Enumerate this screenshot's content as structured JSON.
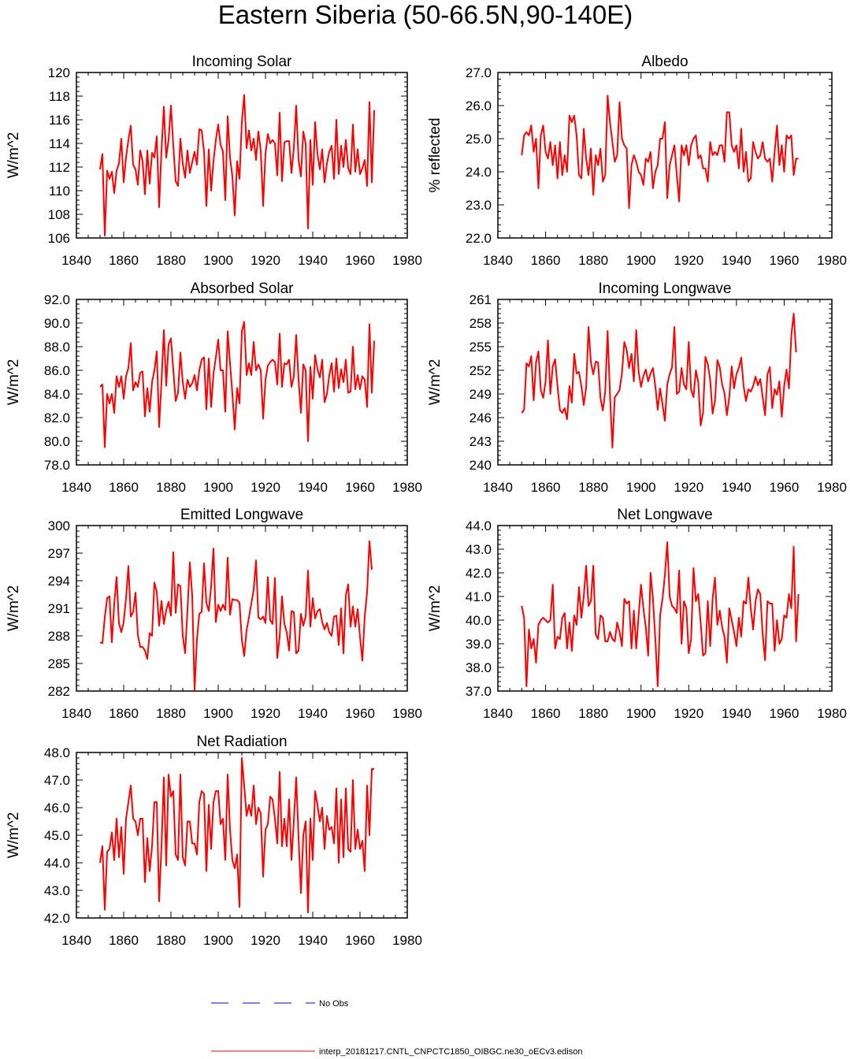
{
  "title": "Eastern Siberia (50-66.5N,90-140E)",
  "colors": {
    "series": "#ff0000",
    "obs": "#0000cc",
    "axes": "#000000"
  },
  "legend": {
    "obs_label": "No Obs",
    "model_label": "interp_20181217.CNTL_CNPCTC1850_OIBGC.ne30_oECv3.edison"
  },
  "chart_data": [
    {
      "type": "line",
      "title": "Incoming Solar",
      "ylabel": "W/m^2",
      "xlim": [
        1840,
        1980
      ],
      "ylim": [
        106,
        120
      ],
      "xticks": [
        "1840",
        "1860",
        "1880",
        "1900",
        "1920",
        "1940",
        "1960",
        "1980"
      ],
      "yticks": [
        "106",
        "108",
        "110",
        "112",
        "114",
        "116",
        "118",
        "120"
      ],
      "x_start": 1850,
      "values": [
        111.8,
        113.1,
        106.2,
        111.7,
        111.0,
        111.6,
        109.8,
        111.7,
        112.3,
        114.4,
        110.7,
        112.8,
        114.3,
        115.5,
        112.2,
        111.8,
        110.5,
        113.4,
        112.5,
        109.7,
        113.4,
        110.6,
        113.2,
        112.8,
        114.6,
        108.6,
        113.4,
        117.1,
        112.8,
        114.3,
        117.2,
        113.8,
        110.8,
        110.4,
        114.4,
        112.3,
        111.1,
        113.4,
        111.5,
        112.4,
        113.3,
        112.2,
        115.2,
        115.1,
        113.3,
        108.7,
        113.5,
        110.0,
        112.5,
        114.3,
        115.6,
        113.9,
        113.3,
        109.2,
        116.3,
        112.8,
        111.2,
        107.9,
        112.5,
        111.0,
        115.8,
        118.1,
        113.6,
        115.1,
        113.4,
        114.4,
        112.6,
        115.0,
        113.4,
        108.7,
        113.1,
        114.8,
        114.0,
        114.3,
        114.0,
        111.3,
        116.6,
        110.8,
        114.1,
        114.2,
        114.2,
        111.5,
        113.6,
        117.2,
        112.6,
        111.2,
        115.0,
        114.0,
        106.8,
        114.3,
        110.5,
        115.8,
        113.1,
        111.8,
        113.5,
        110.7,
        112.3,
        113.3,
        113.8,
        111.0,
        116.0,
        111.4,
        113.8,
        112.0,
        114.3,
        111.9,
        111.4,
        115.6,
        111.6,
        113.5,
        111.4,
        111.9,
        112.6,
        110.4,
        117.5,
        110.7,
        116.8
      ]
    },
    {
      "type": "line",
      "title": "Albedo",
      "ylabel": "% reflected",
      "xlim": [
        1840,
        1980
      ],
      "ylim": [
        22,
        27
      ],
      "xticks": [
        "1840",
        "1860",
        "1880",
        "1900",
        "1920",
        "1940",
        "1960",
        "1980"
      ],
      "yticks": [
        "22.0",
        "23.0",
        "24.0",
        "25.0",
        "26.0",
        "27.0"
      ],
      "x_start": 1850,
      "values": [
        24.5,
        25.1,
        25.2,
        25.1,
        25.4,
        24.6,
        25.0,
        23.5,
        25.1,
        25.4,
        24.6,
        24.4,
        24.9,
        24.2,
        24.8,
        23.8,
        24.9,
        23.9,
        24.5,
        24.0,
        25.7,
        25.5,
        25.7,
        25.1,
        23.9,
        23.8,
        25.3,
        24.4,
        23.9,
        24.7,
        23.3,
        24.5,
        24.2,
        24.7,
        23.7,
        23.9,
        26.3,
        25.5,
        24.9,
        24.3,
        24.5,
        26.1,
        25.0,
        24.8,
        24.7,
        22.9,
        24.2,
        24.5,
        24.3,
        24.0,
        23.9,
        23.6,
        24.4,
        24.3,
        24.6,
        23.5,
        24.0,
        24.2,
        25.0,
        25.0,
        25.5,
        23.2,
        24.2,
        24.5,
        24.8,
        23.9,
        23.1,
        24.8,
        24.5,
        24.8,
        24.2,
        24.8,
        25.0,
        25.1,
        24.4,
        24.5,
        24.1,
        24.1,
        23.7,
        24.9,
        24.5,
        24.6,
        24.5,
        24.8,
        24.8,
        24.3,
        25.8,
        25.8,
        24.8,
        24.6,
        24.8,
        24.1,
        25.3,
        24.0,
        24.6,
        23.7,
        23.8,
        24.9,
        24.6,
        24.4,
        24.5,
        24.9,
        24.4,
        24.3,
        24.4,
        23.7,
        24.6,
        25.4,
        24.2,
        24.8,
        24.0,
        25.1,
        25.0,
        25.1,
        23.9,
        24.4,
        24.4
      ]
    },
    {
      "type": "line",
      "title": "Absorbed Solar",
      "ylabel": "W/m^2",
      "xlim": [
        1840,
        1980
      ],
      "ylim": [
        78,
        92
      ],
      "xticks": [
        "1840",
        "1860",
        "1880",
        "1900",
        "1920",
        "1940",
        "1960",
        "1980"
      ],
      "yticks": [
        "78.0",
        "80.0",
        "82.0",
        "84.0",
        "86.0",
        "88.0",
        "90.0",
        "92.0"
      ],
      "x_start": 1850,
      "values": [
        84.6,
        84.8,
        79.5,
        84.0,
        83.2,
        84.0,
        82.4,
        85.5,
        84.6,
        85.5,
        83.6,
        85.5,
        86.2,
        88.3,
        84.3,
        85.0,
        84.6,
        85.8,
        85.9,
        82.1,
        84.5,
        82.5,
        85.0,
        86.0,
        87.6,
        81.2,
        85.0,
        89.4,
        84.7,
        88.2,
        88.7,
        86.0,
        83.4,
        84.1,
        87.5,
        85.0,
        83.6,
        85.2,
        84.6,
        84.9,
        85.6,
        84.3,
        86.0,
        86.9,
        87.1,
        82.7,
        87.0,
        82.9,
        85.7,
        87.1,
        88.6,
        86.0,
        86.0,
        82.5,
        89.3,
        86.6,
        84.0,
        81.0,
        84.5,
        83.2,
        89.3,
        90.1,
        85.6,
        86.6,
        85.6,
        88.4,
        86.0,
        86.5,
        86.0,
        81.9,
        85.2,
        86.4,
        86.7,
        86.9,
        86.7,
        84.8,
        89.1,
        84.6,
        86.6,
        86.5,
        86.9,
        84.6,
        85.5,
        89.0,
        85.2,
        82.4,
        86.5,
        86.0,
        80.0,
        86.3,
        83.6,
        87.3,
        86.1,
        85.4,
        86.9,
        83.3,
        84.0,
        85.6,
        86.6,
        84.2,
        87.0,
        84.5,
        86.1,
        85.0,
        86.9,
        84.1,
        84.2,
        88.0,
        84.4,
        85.6,
        84.4,
        85.5,
        85.2,
        82.9,
        89.9,
        84.1,
        88.5
      ]
    },
    {
      "type": "line",
      "title": "Incoming Longwave",
      "ylabel": "W/m^2",
      "xlim": [
        1840,
        1980
      ],
      "ylim": [
        240,
        261
      ],
      "xticks": [
        "1840",
        "1860",
        "1880",
        "1900",
        "1920",
        "1940",
        "1960",
        "1980"
      ],
      "yticks": [
        "240",
        "243",
        "246",
        "249",
        "252",
        "255",
        "258",
        "261"
      ],
      "x_start": 1850,
      "values": [
        246.6,
        247.0,
        252.9,
        252.5,
        253.8,
        248.2,
        253.0,
        254.4,
        249.5,
        248.5,
        250.6,
        255.8,
        249.0,
        252.5,
        253.4,
        250.0,
        247.0,
        246.6,
        247.2,
        245.8,
        250.0,
        247.9,
        254.1,
        251.6,
        251.8,
        250.0,
        247.6,
        249.8,
        257.5,
        253.0,
        251.5,
        253.1,
        253.0,
        248.5,
        246.9,
        249.3,
        257.0,
        248.9,
        242.2,
        248.6,
        249.0,
        249.5,
        251.6,
        255.6,
        254.6,
        252.3,
        254.1,
        250.6,
        257.1,
        251.8,
        249.9,
        251.3,
        252.1,
        250.6,
        251.6,
        252.3,
        250.0,
        247.0,
        249.7,
        247.7,
        245.6,
        250.2,
        251.5,
        252.4,
        257.5,
        249.0,
        249.3,
        252.3,
        250.2,
        249.6,
        255.6,
        249.5,
        248.6,
        252.0,
        250.5,
        245.0,
        246.6,
        253.7,
        252.8,
        250.8,
        246.5,
        248.1,
        253.3,
        252.4,
        250.2,
        249.1,
        246.3,
        248.6,
        252.5,
        249.7,
        251.5,
        252.3,
        253.6,
        250.0,
        248.1,
        249.6,
        249.3,
        250.0,
        251.2,
        250.1,
        250.9,
        248.6,
        246.3,
        251.5,
        252.4,
        247.2,
        249.6,
        248.9,
        250.6,
        246.1,
        250.0,
        252.1,
        249.7,
        256.4,
        259.2,
        254.3
      ]
    },
    {
      "type": "line",
      "title": "Emitted Longwave",
      "ylabel": "W/m^2",
      "xlim": [
        1840,
        1980
      ],
      "ylim": [
        282,
        300
      ],
      "xticks": [
        "1840",
        "1860",
        "1880",
        "1900",
        "1920",
        "1940",
        "1960",
        "1980"
      ],
      "yticks": [
        "282",
        "285",
        "288",
        "291",
        "294",
        "297",
        "300"
      ],
      "x_start": 1850,
      "values": [
        287.3,
        287.2,
        290.0,
        292.1,
        292.3,
        287.3,
        291.5,
        294.4,
        289.4,
        288.4,
        289.5,
        292.1,
        295.6,
        290.1,
        290.6,
        292.7,
        288.1,
        286.8,
        286.8,
        286.4,
        285.5,
        288.3,
        288.0,
        293.8,
        292.8,
        289.1,
        291.8,
        289.3,
        290.8,
        291.7,
        290.2,
        297.1,
        290.5,
        293.6,
        293.4,
        288.0,
        286.1,
        290.8,
        296.0,
        292.4,
        282.1,
        287.6,
        290.4,
        290.6,
        295.9,
        291.6,
        290.7,
        293.4,
        297.5,
        289.5,
        291.4,
        290.7,
        291.4,
        290.8,
        296.5,
        290.3,
        292.0,
        291.9,
        291.9,
        291.6,
        287.6,
        285.8,
        288.6,
        290.0,
        291.5,
        293.0,
        296.2,
        290.0,
        289.8,
        290.1,
        289.4,
        294.4,
        289.7,
        289.3,
        294.3,
        285.6,
        287.9,
        292.3,
        289.3,
        288.4,
        286.4,
        290.7,
        290.6,
        286.1,
        286.4,
        290.4,
        289.1,
        290.1,
        295.1,
        289.0,
        292.1,
        289.9,
        290.7,
        290.9,
        289.5,
        288.7,
        289.4,
        288.4,
        288.0,
        290.1,
        290.2,
        287.0,
        291.0,
        286.1,
        292.4,
        293.6,
        289.0,
        291.2,
        289.0,
        290.9,
        287.9,
        285.3,
        290.1,
        292.8,
        298.3,
        295.2
      ]
    },
    {
      "type": "line",
      "title": "Net Longwave",
      "ylabel": "W/m^2",
      "xlim": [
        1840,
        1980
      ],
      "ylim": [
        37,
        44
      ],
      "xticks": [
        "1840",
        "1860",
        "1880",
        "1900",
        "1920",
        "1940",
        "1960",
        "1980"
      ],
      "yticks": [
        "37.0",
        "38.0",
        "39.0",
        "40.0",
        "41.0",
        "42.0",
        "43.0",
        "44.0"
      ],
      "x_start": 1850,
      "values": [
        40.6,
        40.1,
        37.2,
        39.6,
        38.8,
        39.2,
        38.2,
        39.8,
        40.0,
        40.1,
        40.0,
        39.9,
        40.0,
        41.5,
        38.8,
        39.3,
        39.2,
        40.1,
        40.3,
        38.8,
        39.9,
        38.7,
        40.2,
        39.8,
        41.4,
        40.1,
        41.0,
        42.3,
        40.6,
        40.8,
        42.3,
        39.4,
        39.2,
        40.2,
        40.1,
        39.1,
        39.1,
        39.5,
        39.2,
        39.1,
        39.9,
        39.5,
        38.9,
        40.9,
        40.7,
        40.8,
        38.8,
        40.4,
        38.8,
        40.2,
        41.5,
        40.5,
        39.7,
        38.5,
        42.0,
        40.9,
        39.2,
        37.2,
        40.2,
        40.9,
        41.9,
        43.3,
        41.0,
        40.6,
        40.5,
        40.3,
        42.1,
        39.0,
        40.8,
        40.5,
        38.6,
        39.2,
        42.2,
        40.8,
        41.1,
        39.9,
        38.5,
        38.6,
        40.8,
        38.9,
        40.9,
        41.8,
        39.8,
        40.4,
        39.7,
        39.3,
        38.2,
        40.5,
        40.0,
        39.5,
        38.9,
        40.1,
        39.3,
        40.8,
        40.7,
        41.8,
        40.5,
        39.6,
        40.8,
        41.3,
        41.1,
        39.4,
        38.3,
        40.8,
        40.7,
        40.7,
        38.7,
        40.0,
        39.0,
        39.2,
        40.2,
        40.1,
        41.1,
        40.5,
        43.1,
        39.1,
        41.1
      ]
    },
    {
      "type": "line",
      "title": "Net Radiation",
      "ylabel": "W/m^2",
      "xlim": [
        1840,
        1980
      ],
      "ylim": [
        42,
        48
      ],
      "xticks": [
        "1840",
        "1860",
        "1880",
        "1900",
        "1920",
        "1940",
        "1960",
        "1980"
      ],
      "yticks": [
        "42.0",
        "43.0",
        "44.0",
        "45.0",
        "46.0",
        "47.0",
        "48.0"
      ],
      "x_start": 1850,
      "values": [
        44.0,
        44.6,
        42.3,
        44.4,
        44.5,
        45.1,
        44.1,
        45.6,
        44.2,
        45.3,
        43.6,
        45.6,
        46.2,
        46.8,
        45.6,
        45.5,
        45.0,
        45.6,
        45.6,
        43.3,
        44.9,
        43.7,
        44.6,
        46.2,
        46.2,
        42.6,
        44.6,
        47.1,
        43.9,
        47.2,
        46.4,
        46.6,
        44.3,
        44.1,
        47.2,
        44.2,
        43.9,
        45.5,
        45.5,
        44.7,
        44.7,
        44.3,
        46.2,
        46.6,
        46.5,
        43.7,
        46.1,
        44.5,
        46.2,
        46.6,
        46.6,
        45.4,
        45.6,
        44.1,
        47.2,
        45.2,
        44.1,
        43.8,
        44.3,
        42.4,
        47.8,
        46.8,
        45.7,
        46.1,
        45.7,
        46.8,
        45.4,
        46.0,
        45.8,
        43.5,
        45.2,
        45.4,
        46.4,
        46.3,
        45.6,
        44.7,
        47.3,
        44.6,
        45.6,
        44.6,
        46.3,
        44.1,
        45.5,
        47.1,
        44.9,
        42.9,
        45.0,
        45.5,
        42.2,
        45.6,
        44.1,
        46.6,
        46.1,
        45.5,
        46.0,
        44.5,
        45.7,
        45.2,
        45.3,
        44.7,
        46.7,
        44.0,
        46.3,
        44.2,
        46.7,
        44.5,
        44.4,
        47.0,
        44.5,
        45.2,
        44.5,
        44.8,
        43.7,
        46.8,
        45.0,
        47.4,
        47.4
      ]
    }
  ]
}
